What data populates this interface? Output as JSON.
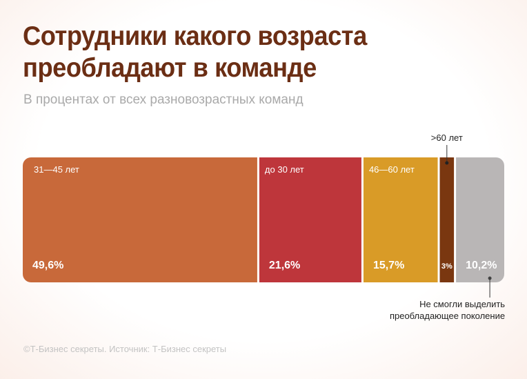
{
  "title_lines": [
    "Сотрудники какого возраста",
    "преобладают в команде"
  ],
  "subtitle": "В процентах от всех разновозрастных команд",
  "chart_data": {
    "type": "bar",
    "stacked": true,
    "orientation": "horizontal",
    "unit": "%",
    "segments": [
      {
        "category": "31—45 лет",
        "value": 49.6,
        "value_label": "49,6%",
        "color": "#c8693a"
      },
      {
        "category": "до 30 лет",
        "value": 21.6,
        "value_label": "21,6%",
        "color": "#be363b"
      },
      {
        "category": "46—60 лет",
        "value": 15.7,
        "value_label": "15,7%",
        "color": "#d99b27"
      },
      {
        "category": ">60 лет",
        "value": 3,
        "value_label": "3%",
        "color": "#7a3710"
      },
      {
        "category": "",
        "value": 10.2,
        "value_label": "10,2%",
        "color": "#b9b6b6"
      }
    ],
    "annotation": "Не смогли выделить преобладающее поколение"
  },
  "footer": "©Т-Бизнес секреты. Источник: Т-Бизнес секреты"
}
